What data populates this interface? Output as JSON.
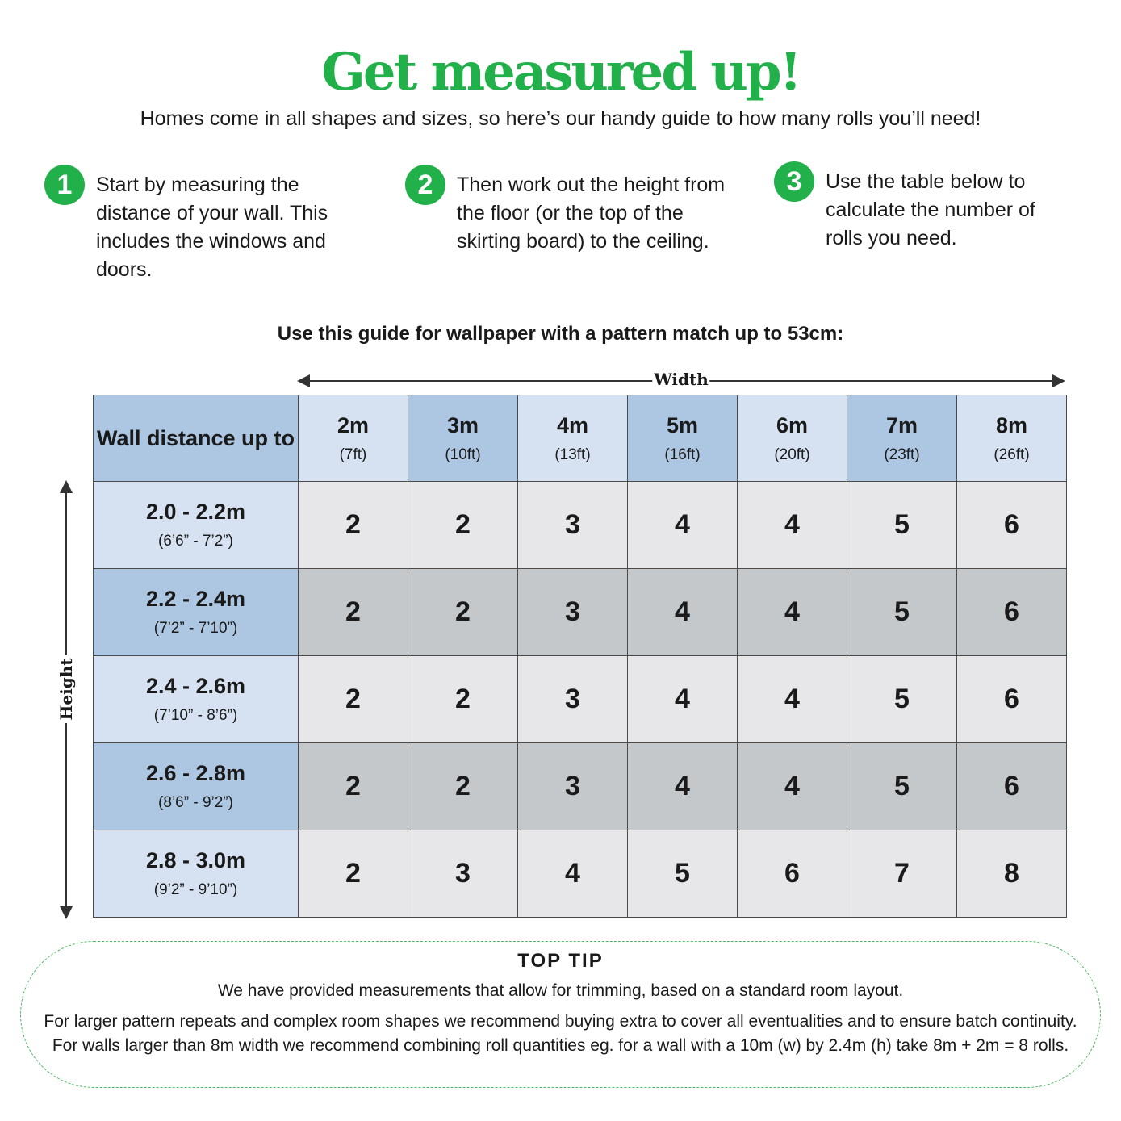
{
  "title": "Get measured up!",
  "subtitle": "Homes come in all shapes and sizes, so here’s our handy guide to how many rolls you’ll need!",
  "steps": [
    {
      "num": "1",
      "text": "Start by measuring the distance of your wall. This includes the windows and doors."
    },
    {
      "num": "2",
      "text": "Then work out the height from the floor (or the top of the skirting board) to the ceiling."
    },
    {
      "num": "3",
      "text": "Use the table below to calculate the number of rolls you need."
    }
  ],
  "guide": "Use this guide for wallpaper with a pattern match up to 53cm:",
  "axes": {
    "width": "Width",
    "height": "Height"
  },
  "table": {
    "corner": "Wall distance up to",
    "columns": [
      {
        "m": "2m",
        "ft": "(7ft)"
      },
      {
        "m": "3m",
        "ft": "(10ft)"
      },
      {
        "m": "4m",
        "ft": "(13ft)"
      },
      {
        "m": "5m",
        "ft": "(16ft)"
      },
      {
        "m": "6m",
        "ft": "(20ft)"
      },
      {
        "m": "7m",
        "ft": "(23ft)"
      },
      {
        "m": "8m",
        "ft": "(26ft)"
      }
    ],
    "rows": [
      {
        "m": "2.0 - 2.2m",
        "ft": "(6’6” - 7’2”)",
        "values": [
          "2",
          "2",
          "3",
          "4",
          "4",
          "5",
          "6"
        ]
      },
      {
        "m": "2.2 - 2.4m",
        "ft": "(7’2” - 7’10”)",
        "values": [
          "2",
          "2",
          "3",
          "4",
          "4",
          "5",
          "6"
        ]
      },
      {
        "m": "2.4 - 2.6m",
        "ft": "(7’10” - 8’6”)",
        "values": [
          "2",
          "2",
          "3",
          "4",
          "4",
          "5",
          "6"
        ]
      },
      {
        "m": "2.6 - 2.8m",
        "ft": "(8’6” - 9’2”)",
        "values": [
          "2",
          "2",
          "3",
          "4",
          "4",
          "5",
          "6"
        ]
      },
      {
        "m": "2.8 - 3.0m",
        "ft": "(9’2” - 9’10”)",
        "values": [
          "2",
          "3",
          "4",
          "5",
          "6",
          "7",
          "8"
        ]
      }
    ]
  },
  "tip": {
    "title": "TOP TIP",
    "line1": "We have provided measurements that allow for trimming, based on a standard room layout.",
    "line2": "For larger pattern repeats and complex room shapes we recommend buying extra to cover all eventualities and to ensure batch continuity. For walls larger than 8m width we recommend combining roll quantities eg. for a wall with a 10m (w) by 2.4m (h) take 8m + 2m = 8 rolls."
  },
  "colors": {
    "brand": "#22b04a",
    "header_light": "#d6e2f2",
    "header_dark": "#adc7e2",
    "cell_light": "#e7e7e9",
    "cell_dark": "#c5c8cb"
  }
}
